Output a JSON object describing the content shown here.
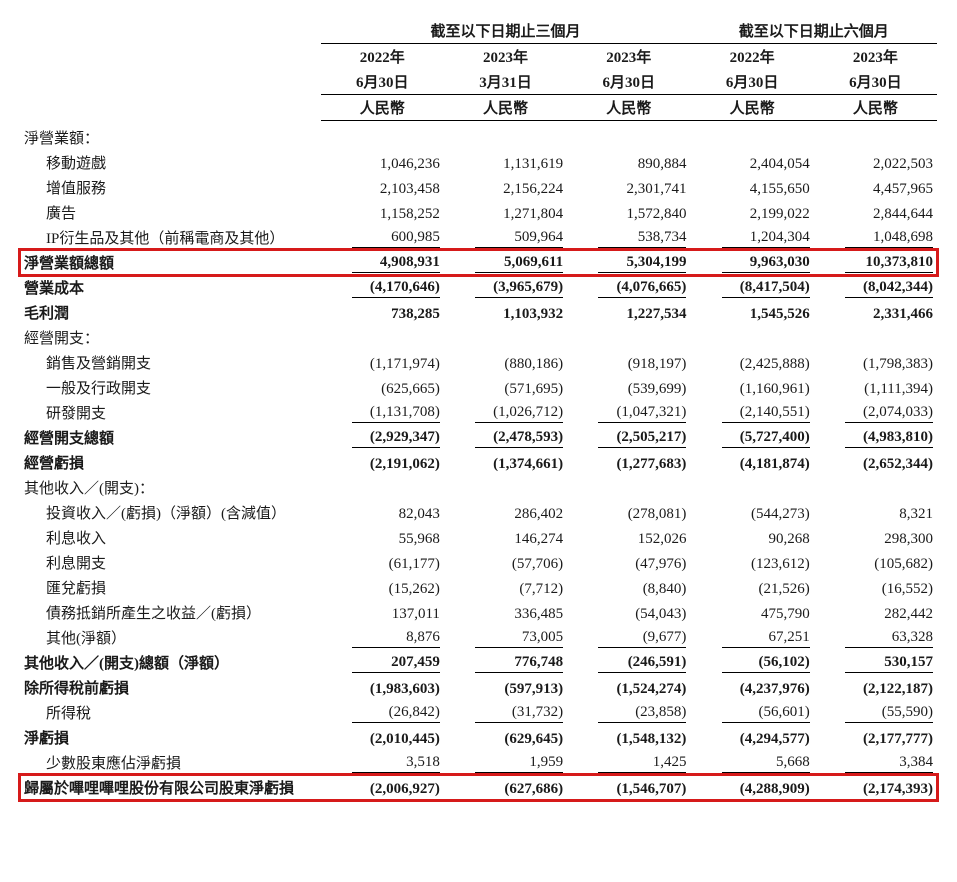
{
  "colors": {
    "highlight_border": "#d61a1a",
    "text": "#1a1a1a",
    "rule": "#000000",
    "background": "#ffffff"
  },
  "group_headers": {
    "three_months": "截至以下日期止三個月",
    "six_months": "截至以下日期止六個月"
  },
  "col_headers": {
    "c1_year": "2022年",
    "c1_date": "6月30日",
    "c2_year": "2023年",
    "c2_date": "3月31日",
    "c3_year": "2023年",
    "c3_date": "6月30日",
    "c4_year": "2022年",
    "c4_date": "6月30日",
    "c5_year": "2023年",
    "c5_date": "6月30日"
  },
  "currency_label": "人民幣",
  "rows": {
    "net_rev_header": {
      "label": "淨營業額："
    },
    "mobile_games": {
      "label": "移動遊戲",
      "v": [
        "1,046,236",
        "1,131,619",
        "890,884",
        "2,404,054",
        "2,022,503"
      ]
    },
    "vas": {
      "label": "增值服務",
      "v": [
        "2,103,458",
        "2,156,224",
        "2,301,741",
        "4,155,650",
        "4,457,965"
      ]
    },
    "ads": {
      "label": "廣告",
      "v": [
        "1,158,252",
        "1,271,804",
        "1,572,840",
        "2,199,022",
        "2,844,644"
      ]
    },
    "ip_other": {
      "label": "IP衍生品及其他（前稱電商及其他）",
      "v": [
        "600,985",
        "509,964",
        "538,734",
        "1,204,304",
        "1,048,698"
      ]
    },
    "total_net_rev": {
      "label": "淨營業額總額",
      "v": [
        "4,908,931",
        "5,069,611",
        "5,304,199",
        "9,963,030",
        "10,373,810"
      ]
    },
    "cost_of_rev": {
      "label": "營業成本",
      "v": [
        "(4,170,646)",
        "(3,965,679)",
        "(4,076,665)",
        "(8,417,504)",
        "(8,042,344)"
      ]
    },
    "gross_profit": {
      "label": "毛利潤",
      "v": [
        "738,285",
        "1,103,932",
        "1,227,534",
        "1,545,526",
        "2,331,466"
      ]
    },
    "opex_header": {
      "label": "經營開支："
    },
    "sm": {
      "label": "銷售及營銷開支",
      "v": [
        "(1,171,974)",
        "(880,186)",
        "(918,197)",
        "(2,425,888)",
        "(1,798,383)"
      ]
    },
    "ga": {
      "label": "一般及行政開支",
      "v": [
        "(625,665)",
        "(571,695)",
        "(539,699)",
        "(1,160,961)",
        "(1,111,394)"
      ]
    },
    "rd": {
      "label": "研發開支",
      "v": [
        "(1,131,708)",
        "(1,026,712)",
        "(1,047,321)",
        "(2,140,551)",
        "(2,074,033)"
      ]
    },
    "total_opex": {
      "label": "經營開支總額",
      "v": [
        "(2,929,347)",
        "(2,478,593)",
        "(2,505,217)",
        "(5,727,400)",
        "(4,983,810)"
      ]
    },
    "op_loss": {
      "label": "經營虧損",
      "v": [
        "(2,191,062)",
        "(1,374,661)",
        "(1,277,683)",
        "(4,181,874)",
        "(2,652,344)"
      ]
    },
    "other_header": {
      "label": "其他收入／(開支)："
    },
    "inv_income": {
      "label": "投資收入／(虧損)（淨額）(含減值）",
      "v": [
        "82,043",
        "286,402",
        "(278,081)",
        "(544,273)",
        "8,321"
      ]
    },
    "int_income": {
      "label": "利息收入",
      "v": [
        "55,968",
        "146,274",
        "152,026",
        "90,268",
        "298,300"
      ]
    },
    "int_expense": {
      "label": "利息開支",
      "v": [
        "(61,177)",
        "(57,706)",
        "(47,976)",
        "(123,612)",
        "(105,682)"
      ]
    },
    "fx_loss": {
      "label": "匯兌虧損",
      "v": [
        "(15,262)",
        "(7,712)",
        "(8,840)",
        "(21,526)",
        "(16,552)"
      ]
    },
    "debt_ext": {
      "label": "債務抵銷所產生之收益／(虧損）",
      "v": [
        "137,011",
        "336,485",
        "(54,043)",
        "475,790",
        "282,442"
      ]
    },
    "other_net": {
      "label": "其他(淨額）",
      "v": [
        "8,876",
        "73,005",
        "(9,677)",
        "67,251",
        "63,328"
      ]
    },
    "total_other": {
      "label": "其他收入／(開支)總額（淨額）",
      "v": [
        "207,459",
        "776,748",
        "(246,591)",
        "(56,102)",
        "530,157"
      ]
    },
    "loss_before_tax": {
      "label": "除所得稅前虧損",
      "v": [
        "(1,983,603)",
        "(597,913)",
        "(1,524,274)",
        "(4,237,976)",
        "(2,122,187)"
      ]
    },
    "income_tax": {
      "label": "所得稅",
      "v": [
        "(26,842)",
        "(31,732)",
        "(23,858)",
        "(56,601)",
        "(55,590)"
      ]
    },
    "net_loss": {
      "label": "淨虧損",
      "v": [
        "(2,010,445)",
        "(629,645)",
        "(1,548,132)",
        "(4,294,577)",
        "(2,177,777)"
      ]
    },
    "nci": {
      "label": "少數股東應佔淨虧損",
      "v": [
        "3,518",
        "1,959",
        "1,425",
        "5,668",
        "3,384"
      ]
    },
    "attributable": {
      "label": "歸屬於嗶哩嗶哩股份有限公司股東淨虧損",
      "v": [
        "(2,006,927)",
        "(627,686)",
        "(1,546,707)",
        "(4,288,909)",
        "(2,174,393)"
      ]
    }
  }
}
